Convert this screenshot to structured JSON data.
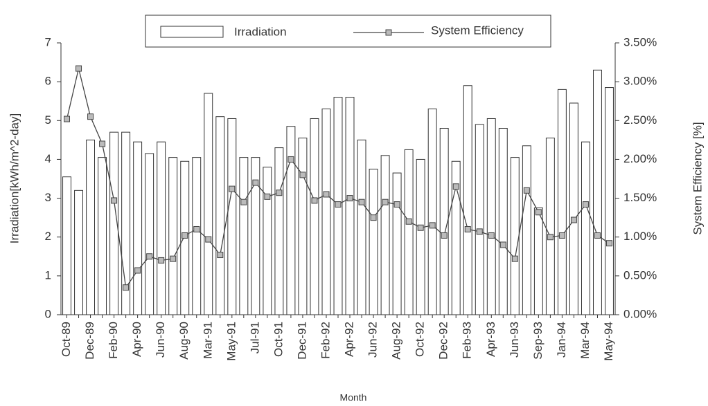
{
  "chart_data": {
    "type": "bar-line",
    "x_label": "Month",
    "y_label": "Irradiation[kWh/m^2-day]",
    "y2_label": "System Efficiency [%]",
    "categories": [
      "Oct-89",
      null,
      "Dec-89",
      null,
      "Feb-90",
      null,
      "Apr-90",
      null,
      "Jun-90",
      null,
      "Aug-90",
      null,
      "Mar-91",
      null,
      "May-91",
      null,
      "Jul-91",
      null,
      "Oct-91",
      null,
      "Dec-91",
      null,
      "Feb-92",
      null,
      "Apr-92",
      null,
      "Jun-92",
      null,
      "Aug-92",
      null,
      "Oct-92",
      null,
      "Dec-92",
      null,
      "Feb-93",
      null,
      "Apr-93",
      null,
      "Jun-93",
      null,
      "Sep-93",
      null,
      "Jan-94",
      null,
      "Mar-94",
      null,
      "May-94"
    ],
    "series": [
      {
        "name": "Irradiation",
        "color": "#ffffff",
        "values": [
          3.55,
          3.2,
          4.5,
          4.05,
          4.7,
          4.7,
          4.45,
          4.15,
          4.45,
          4.05,
          3.95,
          4.05,
          5.7,
          5.1,
          5.05,
          4.05,
          4.05,
          3.8,
          4.3,
          4.85,
          4.55,
          5.05,
          5.3,
          5.6,
          5.6,
          4.5,
          3.75,
          4.1,
          3.65,
          4.25,
          4.0,
          5.3,
          4.8,
          3.95,
          5.9,
          4.9,
          5.05,
          4.8,
          4.05,
          4.35,
          2.75,
          4.55,
          5.8,
          5.45,
          4.45,
          6.3,
          5.85
        ]
      },
      {
        "name": "System Efficiency",
        "color": "#444444",
        "axis": "y2",
        "values": [
          2.52,
          3.17,
          2.55,
          2.2,
          1.47,
          0.35,
          0.57,
          0.75,
          0.7,
          0.72,
          1.02,
          1.1,
          0.97,
          0.77,
          1.62,
          1.45,
          1.7,
          1.52,
          1.57,
          2.0,
          1.8,
          1.47,
          1.55,
          1.42,
          1.5,
          1.45,
          1.25,
          1.45,
          1.42,
          1.2,
          1.12,
          1.15,
          1.02,
          1.65,
          1.1,
          1.07,
          1.02,
          0.9,
          0.72,
          1.6,
          1.32,
          1.0,
          1.02,
          1.22,
          1.42,
          1.02,
          0.92
        ]
      }
    ],
    "ylim": [
      0,
      7
    ],
    "yticks": [
      0,
      1,
      2,
      3,
      4,
      5,
      6,
      7
    ],
    "y2lim": [
      0,
      3.5
    ],
    "y2ticks": [
      {
        "value": 0,
        "label": "0.00%"
      },
      {
        "value": 0.5,
        "label": "0.50%"
      },
      {
        "value": 1,
        "label": "1.00%"
      },
      {
        "value": 1.5,
        "label": "1.50%"
      },
      {
        "value": 2,
        "label": "2.00%"
      },
      {
        "value": 2.5,
        "label": "2.50%"
      },
      {
        "value": 3,
        "label": "3.00%"
      },
      {
        "value": 3.5,
        "label": "3.50%"
      }
    ]
  }
}
